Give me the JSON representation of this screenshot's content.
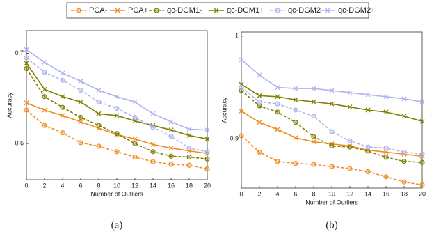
{
  "chart_data": [
    {
      "type": "line",
      "caption": "(a)",
      "xlabel": "Number of Outliers",
      "ylabel": "Accuracy",
      "x": [
        0,
        2,
        4,
        6,
        8,
        10,
        12,
        14,
        16,
        18,
        20
      ],
      "xlim": [
        0,
        20
      ],
      "xticks": [
        0,
        2,
        4,
        6,
        8,
        10,
        12,
        14,
        16,
        18,
        20
      ],
      "ylim": [
        0.56,
        0.725
      ],
      "yticks": [
        0.6,
        0.7
      ],
      "series": [
        {
          "name": "PCA-",
          "color": "#f28c1e",
          "dash": true,
          "marker": "circle",
          "values": [
            0.637,
            0.62,
            0.612,
            0.601,
            0.597,
            0.591,
            0.585,
            0.58,
            0.577,
            0.576,
            0.572
          ]
        },
        {
          "name": "PCA+",
          "color": "#f28c1e",
          "dash": false,
          "marker": "x",
          "values": [
            0.645,
            0.637,
            0.631,
            0.624,
            0.617,
            0.61,
            0.605,
            0.599,
            0.595,
            0.592,
            0.589
          ]
        },
        {
          "name": "qc-DGM1-",
          "color": "#7f7f00",
          "dash": true,
          "marker": "circle",
          "values": [
            0.683,
            0.652,
            0.64,
            0.629,
            0.62,
            0.611,
            0.6,
            0.591,
            0.586,
            0.585,
            0.583
          ]
        },
        {
          "name": "qc-DGM1+",
          "color": "#7f7f00",
          "dash": false,
          "marker": "x",
          "values": [
            0.689,
            0.66,
            0.652,
            0.646,
            0.633,
            0.631,
            0.625,
            0.62,
            0.615,
            0.609,
            0.605
          ]
        },
        {
          "name": "qc-DGM2-",
          "color": "#aeb3f0",
          "dash": true,
          "marker": "circle",
          "values": [
            0.695,
            0.679,
            0.67,
            0.659,
            0.646,
            0.639,
            0.629,
            0.618,
            0.608,
            0.595,
            0.591
          ]
        },
        {
          "name": "qc-DGM2+",
          "color": "#aeb3f0",
          "dash": false,
          "marker": "x",
          "values": [
            0.704,
            0.69,
            0.678,
            0.669,
            0.659,
            0.652,
            0.646,
            0.633,
            0.624,
            0.616,
            0.615
          ]
        }
      ]
    },
    {
      "type": "line",
      "caption": "(b)",
      "xlabel": "Number of Outliers",
      "ylabel": "Accuracy",
      "x": [
        0,
        2,
        4,
        6,
        8,
        10,
        12,
        14,
        16,
        18,
        20
      ],
      "xlim": [
        0,
        20
      ],
      "xticks": [
        0,
        2,
        4,
        6,
        8,
        10,
        12,
        14,
        16,
        18,
        20
      ],
      "ylim": [
        0.852,
        1.004
      ],
      "yticks": [
        0.9,
        1
      ],
      "series": [
        {
          "name": "PCA-",
          "color": "#f28c1e",
          "dash": true,
          "marker": "circle",
          "values": [
            0.903,
            0.887,
            0.878,
            0.876,
            0.875,
            0.873,
            0.871,
            0.868,
            0.863,
            0.858,
            0.855
          ]
        },
        {
          "name": "PCA+",
          "color": "#f28c1e",
          "dash": false,
          "marker": "x",
          "values": [
            0.927,
            0.916,
            0.909,
            0.901,
            0.897,
            0.895,
            0.893,
            0.889,
            0.887,
            0.885,
            0.883
          ]
        },
        {
          "name": "qc-DGM1-",
          "color": "#7f7f00",
          "dash": true,
          "marker": "circle",
          "values": [
            0.947,
            0.932,
            0.926,
            0.916,
            0.902,
            0.893,
            0.892,
            0.888,
            0.882,
            0.878,
            0.877
          ]
        },
        {
          "name": "qc-DGM1+",
          "color": "#7f7f00",
          "dash": false,
          "marker": "x",
          "values": [
            0.953,
            0.942,
            0.941,
            0.938,
            0.936,
            0.934,
            0.931,
            0.928,
            0.926,
            0.922,
            0.917
          ]
        },
        {
          "name": "qc-DGM2-",
          "color": "#aeb3f0",
          "dash": true,
          "marker": "circle",
          "values": [
            0.95,
            0.936,
            0.934,
            0.928,
            0.922,
            0.907,
            0.898,
            0.892,
            0.891,
            0.887,
            0.885
          ]
        },
        {
          "name": "qc-DGM2+",
          "color": "#aeb3f0",
          "dash": false,
          "marker": "x",
          "values": [
            0.977,
            0.962,
            0.95,
            0.949,
            0.949,
            0.947,
            0.945,
            0.943,
            0.941,
            0.939,
            0.936
          ]
        }
      ]
    }
  ]
}
